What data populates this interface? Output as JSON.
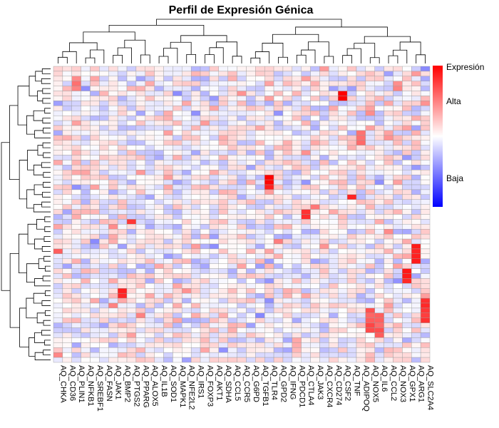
{
  "chart_data": {
    "type": "heatmap",
    "title": "Perfil de Expresión Génica",
    "xlabel": "",
    "ylabel": "",
    "columns": [
      "AQ_CHKA",
      "AQ_CD36",
      "AQ_PLIN1",
      "AQ_NFKB1",
      "AQ_SREBF1",
      "AQ_FASN",
      "AQ_JAK1",
      "AQ_BMP2",
      "AQ_PTGS2",
      "AQ_PPARG",
      "AQ_ALOX5",
      "AQ_IL1B",
      "AQ_SOD1",
      "AQ_MAPK1",
      "AQ_NFE2L2",
      "AQ_IRS1",
      "AQ_FOXP3",
      "AQ_AKT1",
      "AQ_SDHA",
      "AQ_CCL5",
      "AQ_CCR5",
      "AQ_G6PD",
      "AQ_TGFB1",
      "AQ_TLR4",
      "AQ_GPD2",
      "AQ_IFNG",
      "AQ_PDCD1",
      "AQ_CTLA4",
      "AQ_JAK3",
      "AQ_CXCR4",
      "AQ_CD274",
      "AQ_CSF2",
      "AQ_TNF",
      "AQ_ADIPOQ",
      "AQ_NOX5",
      "AQ_IL6",
      "AQ_CCL2",
      "AQ_NOX3",
      "AQ_GPX1",
      "AQ_ARG1",
      "AQ_SLC2A4"
    ],
    "row_count": 60,
    "color_scale": {
      "low": "#0000ff",
      "mid": "#ffffff",
      "high": "#ff0000",
      "range": [
        -3,
        3
      ]
    },
    "legend": {
      "title": "Expresión",
      "labels": [
        "Alta",
        "Baja"
      ],
      "placement": "right"
    },
    "dendrograms": {
      "rows": true,
      "columns": true
    },
    "highlights": [
      {
        "col": "AQ_PLIN1",
        "rows": [
          2,
          3,
          4
        ],
        "value": 1.5
      },
      {
        "col": "AQ_CHKA",
        "rows": [
          37
        ],
        "value": 2.0
      },
      {
        "col": "AQ_PTGS2",
        "rows": [
          31
        ],
        "value": 2.2
      },
      {
        "col": "AQ_BMP2",
        "rows": [
          45,
          46
        ],
        "value": 2.6
      },
      {
        "col": "AQ_TLR4",
        "rows": [
          22,
          23,
          24
        ],
        "value": 2.8
      },
      {
        "col": "AQ_CTLA4",
        "rows": [
          29,
          30
        ],
        "value": 2.5
      },
      {
        "col": "AQ_JAK3",
        "rows": [
          28
        ],
        "value": 1.8
      },
      {
        "col": "AQ_CSF2",
        "rows": [
          5,
          6
        ],
        "value": 3.0
      },
      {
        "col": "AQ_TNF",
        "rows": [
          26
        ],
        "value": 2.6
      },
      {
        "col": "AQ_ADIPOQ",
        "rows": [
          13,
          14,
          15
        ],
        "value": 1.6
      },
      {
        "col": "AQ_NOX5",
        "rows": [
          49,
          50,
          51,
          52,
          53
        ],
        "value": 2.0
      },
      {
        "col": "AQ_IL6",
        "rows": [
          50,
          51,
          52,
          53,
          54
        ],
        "value": 1.9
      },
      {
        "col": "AQ_ARG1",
        "rows": [
          36,
          37,
          38,
          39
        ],
        "value": 2.6
      },
      {
        "col": "AQ_GPX1",
        "rows": [
          41,
          42,
          43
        ],
        "value": 2.7
      },
      {
        "col": "AQ_SLC2A4",
        "rows": [
          47,
          48,
          49,
          50,
          51
        ],
        "value": 2.4
      },
      {
        "col": "AQ_NOX3",
        "rows": [
          3,
          4
        ],
        "value": 1.5
      },
      {
        "col": "AQ_CCL2",
        "rows": [
          33
        ],
        "value": 1.5
      }
    ]
  }
}
